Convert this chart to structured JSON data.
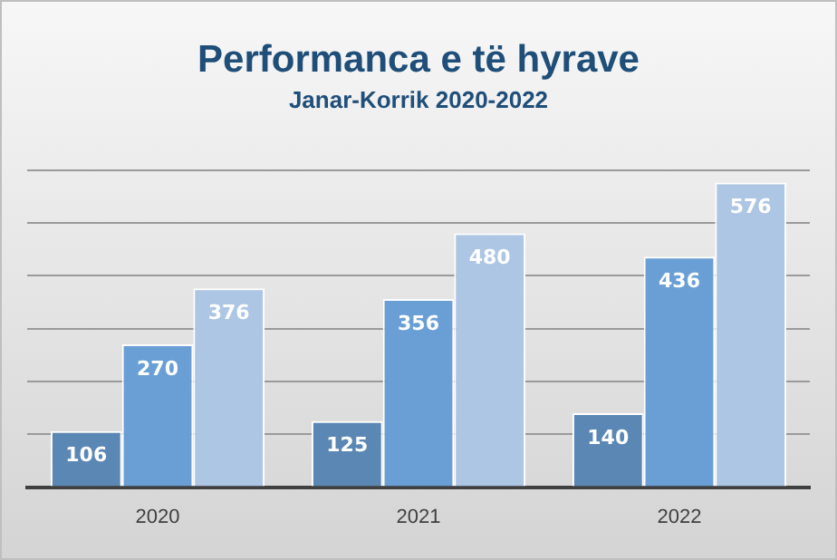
{
  "chart_data": {
    "type": "bar",
    "title": "Performanca e të hyrave",
    "subtitle": "Janar-Korrik 2020-2022",
    "categories": [
      "2020",
      "2021",
      "2022"
    ],
    "series": [
      {
        "color": "#5b87b5",
        "values": [
          106,
          125,
          140
        ]
      },
      {
        "color": "#6a9fd6",
        "values": [
          270,
          356,
          436
        ]
      },
      {
        "color": "#adc6e4",
        "values": [
          376,
          480,
          576
        ]
      }
    ],
    "grid": "y",
    "tick_labels": "x",
    "legend": false,
    "data_labels": true
  }
}
